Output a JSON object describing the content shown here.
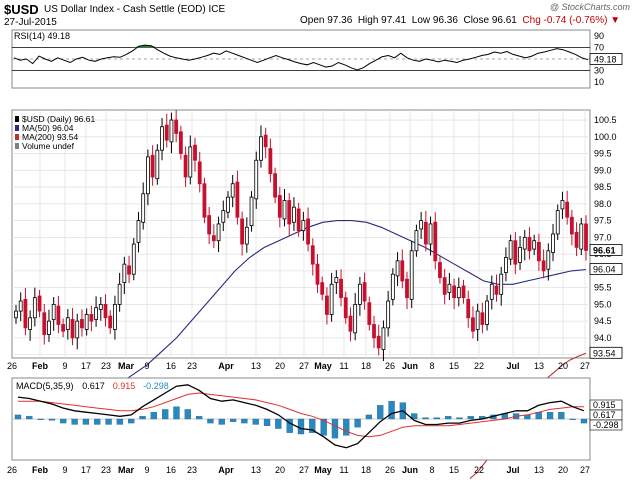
{
  "header": {
    "symbol": "$USD",
    "name": "US Dollar Index - Cash Settle (EOD) ICE",
    "date": "27-Jul-2015",
    "watermark": "@ StockCharts.com",
    "open": "Open 97.36",
    "high": "High 97.41",
    "low": "Low 96.36",
    "close": "Close 96.61",
    "change": "Chg -0.74 (-0.76%)",
    "change_arrow": "▼"
  },
  "x_axis_labels": [
    "26",
    "Feb",
    "9",
    "17",
    "23",
    "Mar",
    "9",
    "16",
    "23",
    "Apr",
    "13",
    "20",
    "27",
    "May",
    "11",
    "18",
    "26",
    "Jun",
    "8",
    "15",
    "22",
    "Jul",
    "13",
    "20",
    "27"
  ],
  "chart_data": [
    {
      "panel": "rsi",
      "type": "line",
      "legend": "RSI(14) 49.18",
      "color": "#000000",
      "overbought_fill": "#2e7d32",
      "levels": [
        70,
        50,
        30
      ],
      "ticks": [
        "90",
        "70",
        "50",
        "30",
        "10"
      ],
      "last_value_label": "49.18",
      "values": [
        52,
        48,
        50,
        42,
        55,
        50,
        46,
        52,
        48,
        44,
        50,
        53,
        48,
        46,
        50,
        52,
        54,
        53,
        58,
        64,
        72,
        74,
        73,
        66,
        60,
        55,
        52,
        50,
        48,
        50,
        53,
        56,
        60,
        58,
        64,
        60,
        56,
        52,
        48,
        44,
        48,
        52,
        56,
        52,
        49,
        45,
        42,
        40,
        44,
        40,
        36,
        38,
        44,
        40,
        35,
        31,
        35,
        42,
        48,
        54,
        56,
        52,
        60,
        52,
        48,
        46,
        50,
        48,
        45,
        48,
        46,
        44,
        48,
        50,
        53,
        56,
        58,
        62,
        60,
        63,
        58,
        55,
        52,
        55,
        60,
        62,
        65,
        68,
        66,
        62,
        58,
        52,
        49
      ]
    },
    {
      "panel": "price",
      "type": "candlestick",
      "legend": [
        {
          "label": "$USD (Daily) 96.61",
          "color": "#000000"
        },
        {
          "label": "MA(50) 96.04",
          "color": "#2a2a80"
        },
        {
          "label": "MA(200) 93.54",
          "color": "#c03030"
        },
        {
          "label": "Volume undef",
          "color": "#808080"
        }
      ],
      "ylim": [
        93.4,
        100.8
      ],
      "ticks": [
        "100.5",
        "100.0",
        "99.5",
        "99.0",
        "98.5",
        "98.0",
        "97.5",
        "97.0",
        "96.5",
        "96.0",
        "95.5",
        "95.0",
        "94.5",
        "94.0",
        "93.5"
      ],
      "last_labels": [
        "96.61",
        "96.04",
        "93.54"
      ],
      "up_color": "#ffffff",
      "down_color": "#c8102e",
      "close": [
        94.8,
        95.1,
        94.3,
        94.6,
        95.2,
        94.8,
        94.1,
        94.5,
        95.0,
        94.4,
        94.2,
        94.6,
        94.0,
        94.5,
        94.3,
        94.7,
        94.5,
        94.9,
        95.0,
        94.6,
        94.3,
        95.0,
        95.6,
        96.2,
        95.9,
        96.8,
        97.5,
        98.3,
        99.4,
        98.8,
        99.6,
        100.3,
        99.9,
        100.5,
        100.1,
        99.5,
        98.8,
        99.7,
        99.3,
        98.6,
        97.6,
        97.1,
        96.9,
        97.4,
        97.8,
        98.2,
        98.6,
        97.6,
        96.8,
        97.3,
        98.2,
        99.3,
        100.0,
        99.7,
        98.9,
        98.2,
        97.6,
        98.1,
        97.4,
        97.9,
        97.2,
        97.5,
        96.8,
        96.2,
        95.6,
        95.3,
        94.7,
        95.6,
        95.8,
        95.2,
        94.6,
        94.2,
        95.0,
        95.6,
        95.1,
        94.4,
        94.0,
        93.7,
        94.3,
        95.1,
        95.9,
        96.3,
        95.7,
        95.2,
        96.6,
        97.2,
        97.5,
        96.8,
        97.4,
        96.3,
        95.8,
        95.3,
        95.6,
        95.2,
        95.5,
        95.2,
        94.6,
        94.2,
        94.8,
        94.4,
        95.1,
        95.6,
        95.3,
        95.9,
        96.4,
        96.9,
        96.2,
        96.7,
        97.0,
        96.6,
        96.9,
        96.3,
        96.0,
        96.6,
        97.1,
        97.8,
        98.1,
        97.6,
        97.1,
        96.7,
        97.4,
        96.61
      ]
    },
    {
      "panel": "price-overlay",
      "type": "line",
      "series": [
        {
          "name": "MA(50) 96.04",
          "values": [
            92.6,
            92.9,
            93.2,
            93.6,
            94.0,
            94.5,
            95.0,
            95.5,
            96.0,
            96.4,
            96.7,
            96.9,
            97.1,
            97.3,
            97.45,
            97.5,
            97.5,
            97.45,
            97.3,
            97.1,
            96.9,
            96.7,
            96.45,
            96.2,
            95.95,
            95.7,
            95.6,
            95.6,
            95.7,
            95.8,
            95.9,
            96.0,
            96.04
          ]
        },
        {
          "name": "MA(200) 93.54",
          "values": [
            89.8,
            90.0,
            90.3,
            90.6,
            91.0,
            91.3,
            91.7,
            92.0,
            92.3,
            92.6,
            92.8,
            93.0,
            93.2,
            93.35,
            93.45,
            93.54
          ]
        }
      ]
    },
    {
      "panel": "macd",
      "type": "line",
      "legend": [
        {
          "label": "MACD(5,35,9)",
          "color": "#000000"
        },
        {
          "label": "0.617",
          "color": "#000000"
        },
        {
          "label": "0.915",
          "color": "#e03030"
        },
        {
          "label": "-0.298",
          "color": "#2a88c0"
        }
      ],
      "last_labels": [
        "0.915",
        "0.617",
        "-0.298"
      ],
      "series": [
        {
          "name": "MACD(5,35,9)",
          "color": "#000000",
          "values": [
            1.6,
            1.5,
            1.3,
            1.1,
            0.8,
            0.6,
            0.5,
            0.4,
            0.3,
            0.2,
            0.3,
            0.9,
            1.4,
            1.9,
            2.4,
            2.5,
            2.1,
            1.5,
            1.3,
            1.4,
            1.2,
            1.0,
            0.7,
            0.3,
            -0.3,
            -0.7,
            -0.8,
            -1.3,
            -1.9,
            -2.1,
            -1.8,
            -1.0,
            -0.2,
            0.4,
            0.6,
            -0.1,
            -0.4,
            -0.4,
            -0.3,
            -0.3,
            -0.1,
            0.0,
            0.2,
            0.4,
            0.6,
            0.6,
            1.0,
            1.2,
            1.3,
            0.9,
            0.6
          ]
        },
        {
          "name": "0.915",
          "color": "#e03030",
          "values": [
            1.3,
            1.3,
            1.3,
            1.2,
            1.1,
            1.0,
            0.9,
            0.8,
            0.7,
            0.6,
            0.6,
            0.7,
            0.9,
            1.2,
            1.5,
            1.8,
            1.9,
            1.8,
            1.7,
            1.6,
            1.5,
            1.4,
            1.2,
            1.0,
            0.7,
            0.4,
            0.2,
            -0.1,
            -0.5,
            -0.9,
            -1.2,
            -1.3,
            -1.2,
            -0.9,
            -0.6,
            -0.5,
            -0.5,
            -0.5,
            -0.5,
            -0.4,
            -0.3,
            -0.2,
            -0.1,
            0.0,
            0.2,
            0.3,
            0.5,
            0.7,
            0.8,
            0.9,
            0.9
          ]
        },
        {
          "name": "-0.298",
          "color": "#2a88c0",
          "type": "histogram",
          "values": [
            0.3,
            0.2,
            0.0,
            -0.1,
            -0.3,
            -0.4,
            -0.4,
            -0.4,
            -0.4,
            -0.4,
            -0.3,
            0.2,
            0.5,
            0.7,
            0.9,
            0.7,
            0.2,
            -0.3,
            -0.4,
            -0.2,
            -0.3,
            -0.4,
            -0.5,
            -0.7,
            -1.0,
            -1.1,
            -1.0,
            -1.2,
            -1.4,
            -1.2,
            -0.6,
            0.3,
            1.0,
            1.3,
            1.2,
            0.4,
            0.1,
            0.1,
            0.2,
            0.1,
            0.2,
            0.2,
            0.3,
            0.4,
            0.4,
            0.3,
            0.5,
            0.5,
            0.5,
            0.0,
            -0.3
          ]
        }
      ]
    }
  ]
}
